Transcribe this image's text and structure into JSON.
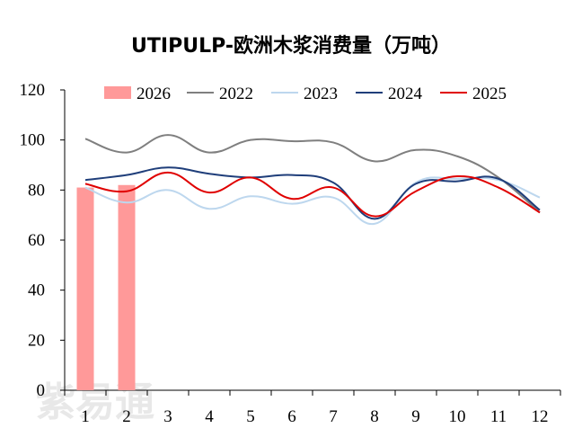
{
  "chart_data": {
    "type": "line",
    "title": "UTIPULP-欧洲木浆消费量（万吨）",
    "xlabel": "",
    "ylabel": "",
    "categories": [
      "1",
      "2",
      "3",
      "4",
      "5",
      "6",
      "7",
      "8",
      "9",
      "10",
      "11",
      "12"
    ],
    "ylim": [
      0,
      120
    ],
    "yticks": [
      0,
      20,
      40,
      60,
      80,
      100,
      120
    ],
    "legend_position": "top",
    "bar_series": {
      "name": "2026",
      "color": "#FF9999",
      "values": [
        81,
        82
      ]
    },
    "series": [
      {
        "name": "2022",
        "color": "#7F7F7F",
        "values": [
          100.5,
          95,
          102,
          95,
          100,
          99.5,
          99,
          91.5,
          96,
          93.5,
          85,
          71
        ]
      },
      {
        "name": "2023",
        "color": "#BDD7EE",
        "values": [
          81,
          75,
          80,
          72.5,
          77.5,
          74.5,
          77,
          66.5,
          83,
          84.5,
          84,
          77
        ]
      },
      {
        "name": "2024",
        "color": "#1F3E7A",
        "values": [
          84,
          86,
          89,
          86.5,
          85,
          86,
          83,
          68.5,
          82.5,
          83.5,
          84.5,
          72
        ]
      },
      {
        "name": "2025",
        "color": "#E00000",
        "values": [
          82.5,
          79.5,
          87,
          79,
          85,
          76.5,
          81,
          69.5,
          79.5,
          85.5,
          81,
          71
        ]
      }
    ]
  },
  "watermark": {
    "text": "紫易通"
  }
}
